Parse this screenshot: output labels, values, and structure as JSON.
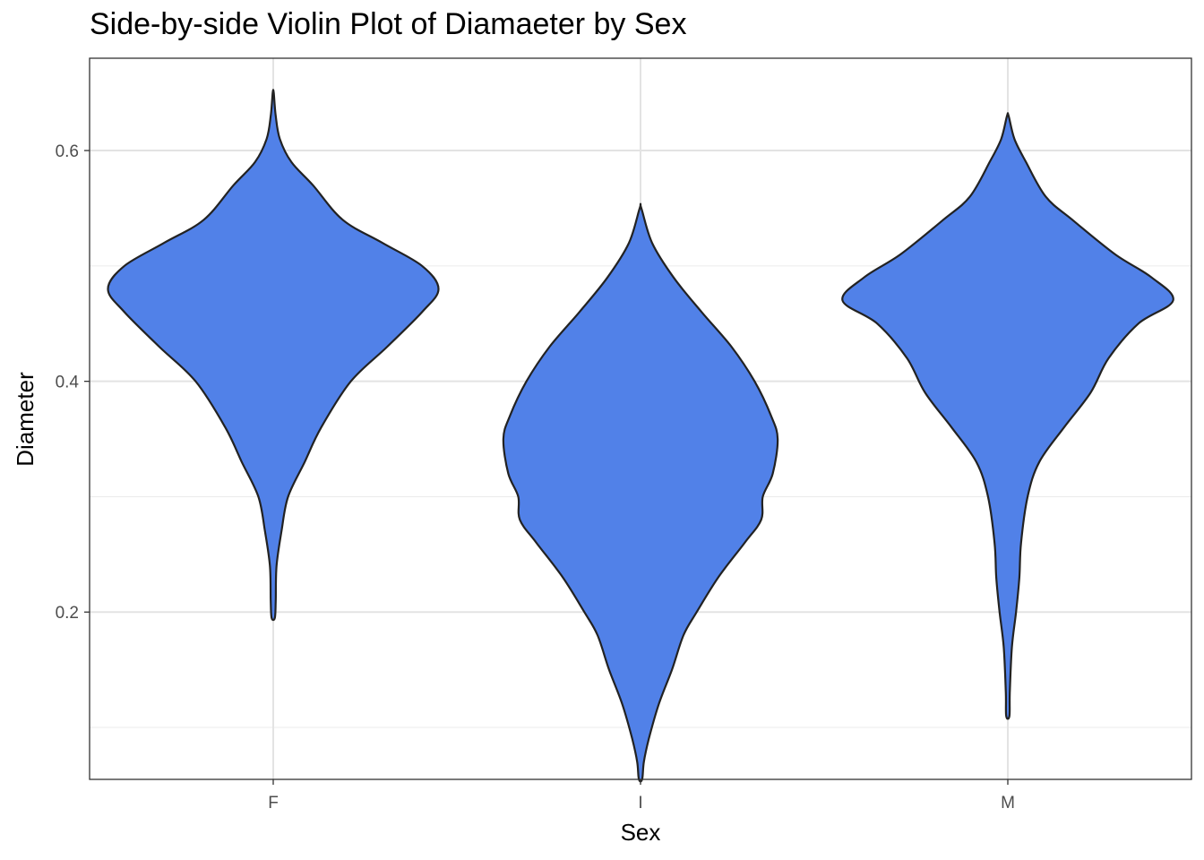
{
  "chart_data": {
    "type": "violin",
    "title": "Side-by-side Violin Plot of Diamaeter by Sex",
    "xlabel": "Sex",
    "ylabel": "Diameter",
    "categories": [
      "F",
      "I",
      "M"
    ],
    "ylim": [
      0.055,
      0.68
    ],
    "yticks": [
      0.2,
      0.4,
      0.6
    ],
    "ytick_labels": [
      "0.2",
      "0.4",
      "0.6"
    ],
    "grid": true,
    "fill_color": "#5181e8",
    "outline_color": "#222222",
    "series": [
      {
        "category": "F",
        "min": 0.195,
        "max": 0.65,
        "density_profile": [
          [
            0.195,
            0.01
          ],
          [
            0.21,
            0.015
          ],
          [
            0.24,
            0.02
          ],
          [
            0.27,
            0.05
          ],
          [
            0.3,
            0.09
          ],
          [
            0.33,
            0.19
          ],
          [
            0.36,
            0.29
          ],
          [
            0.4,
            0.47
          ],
          [
            0.43,
            0.69
          ],
          [
            0.46,
            0.9
          ],
          [
            0.48,
            1.0
          ],
          [
            0.5,
            0.9
          ],
          [
            0.52,
            0.66
          ],
          [
            0.54,
            0.42
          ],
          [
            0.57,
            0.24
          ],
          [
            0.59,
            0.11
          ],
          [
            0.61,
            0.04
          ],
          [
            0.63,
            0.015
          ],
          [
            0.65,
            0.003
          ]
        ]
      },
      {
        "category": "I",
        "min": 0.055,
        "max": 0.55,
        "density_profile": [
          [
            0.055,
            0.01
          ],
          [
            0.07,
            0.02
          ],
          [
            0.09,
            0.05
          ],
          [
            0.12,
            0.11
          ],
          [
            0.15,
            0.19
          ],
          [
            0.18,
            0.26
          ],
          [
            0.2,
            0.34
          ],
          [
            0.23,
            0.47
          ],
          [
            0.26,
            0.63
          ],
          [
            0.28,
            0.73
          ],
          [
            0.3,
            0.74
          ],
          [
            0.32,
            0.8
          ],
          [
            0.35,
            0.83
          ],
          [
            0.37,
            0.79
          ],
          [
            0.4,
            0.69
          ],
          [
            0.43,
            0.55
          ],
          [
            0.46,
            0.37
          ],
          [
            0.49,
            0.2
          ],
          [
            0.52,
            0.07
          ],
          [
            0.55,
            0.005
          ]
        ]
      },
      {
        "category": "M",
        "min": 0.11,
        "max": 0.63,
        "density_profile": [
          [
            0.11,
            0.01
          ],
          [
            0.13,
            0.012
          ],
          [
            0.17,
            0.025
          ],
          [
            0.2,
            0.05
          ],
          [
            0.23,
            0.07
          ],
          [
            0.26,
            0.08
          ],
          [
            0.3,
            0.12
          ],
          [
            0.33,
            0.19
          ],
          [
            0.36,
            0.34
          ],
          [
            0.39,
            0.5
          ],
          [
            0.42,
            0.61
          ],
          [
            0.45,
            0.79
          ],
          [
            0.47,
            1.0
          ],
          [
            0.49,
            0.87
          ],
          [
            0.51,
            0.65
          ],
          [
            0.54,
            0.39
          ],
          [
            0.56,
            0.23
          ],
          [
            0.59,
            0.11
          ],
          [
            0.61,
            0.04
          ],
          [
            0.63,
            0.005
          ]
        ]
      }
    ]
  }
}
